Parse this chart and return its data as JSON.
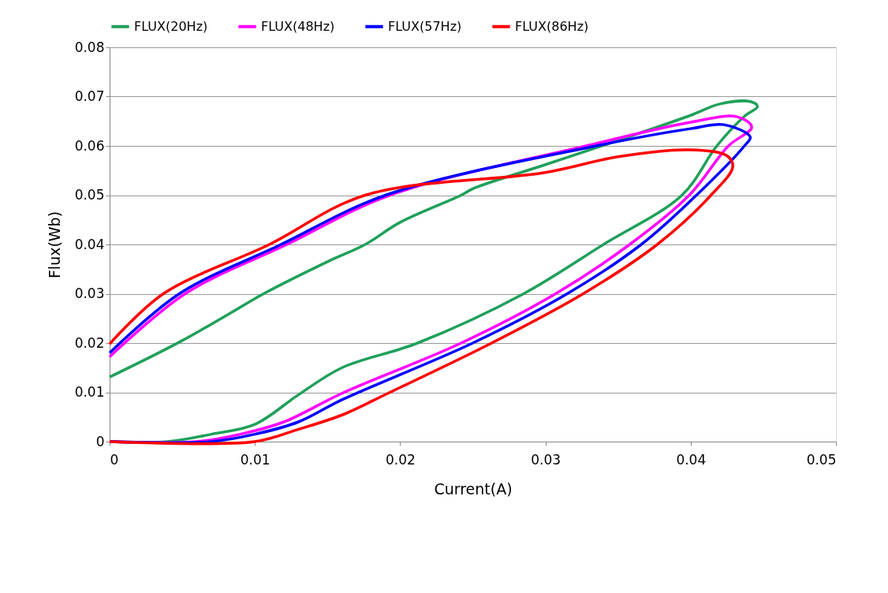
{
  "chart_data": {
    "type": "line",
    "xlabel": "Current(A)",
    "ylabel": "Flux(Wb)",
    "xlim": [
      0,
      0.05
    ],
    "xticks": [
      0,
      0.01,
      0.02,
      0.03,
      0.04,
      0.05
    ],
    "ylim": [
      0,
      0.08
    ],
    "yticks": [
      0,
      0.01,
      0.02,
      0.03,
      0.04,
      0.05,
      0.06,
      0.07,
      0.08
    ],
    "grid": "y",
    "legend": "top",
    "marker": "none",
    "line_style": "solid",
    "series": [
      {
        "name": "FLUX(20Hz)",
        "color": "#1fa05a",
        "x": [
          0,
          0.004,
          0.007,
          0.01,
          0.013,
          0.016,
          0.0212,
          0.0285,
          0.034,
          0.0394,
          0.0418,
          0.0437,
          0.0446,
          0.0441,
          0.042,
          0.04,
          0.035,
          0.03,
          0.025,
          0.0242,
          0.02,
          0.0176,
          0.015,
          0.0106,
          0.01,
          0.005,
          0
        ],
        "values": [
          0,
          0,
          0.0015,
          0.0035,
          0.0095,
          0.015,
          0.02,
          0.03,
          0.04,
          0.05,
          0.06,
          0.066,
          0.068,
          0.069,
          0.0685,
          0.0662,
          0.0611,
          0.0562,
          0.0513,
          0.05,
          0.0445,
          0.04,
          0.0365,
          0.03,
          0.029,
          0.0205,
          0.0131
        ]
      },
      {
        "name": "FLUX(48Hz)",
        "color": "#ff00ff",
        "x": [
          0,
          0.006,
          0.009,
          0.012,
          0.016,
          0.0242,
          0.0307,
          0.0358,
          0.0399,
          0.0426,
          0.0442,
          0.0432,
          0.04,
          0.0328,
          0.0193,
          0.0122,
          0.0052,
          0
        ],
        "values": [
          0,
          0,
          0.0015,
          0.004,
          0.0098,
          0.02,
          0.03,
          0.04,
          0.05,
          0.06,
          0.0638,
          0.0659,
          0.0648,
          0.06,
          0.05,
          0.04,
          0.03,
          0.0172
        ]
      },
      {
        "name": "FLUX(57Hz)",
        "color": "#0000ff",
        "x": [
          0,
          0.007,
          0.01,
          0.013,
          0.016,
          0.025,
          0.0315,
          0.0366,
          0.0404,
          0.0437,
          0.0441,
          0.0423,
          0.04,
          0.0335,
          0.019,
          0.0118,
          0.0048,
          0
        ],
        "values": [
          0,
          0,
          0.0015,
          0.004,
          0.0085,
          0.02,
          0.03,
          0.04,
          0.05,
          0.06,
          0.0618,
          0.0643,
          0.0635,
          0.06,
          0.05,
          0.04,
          0.03,
          0.018
        ]
      },
      {
        "name": "FLUX(86Hz)",
        "color": "#ff0000",
        "x": [
          0,
          0.01,
          0.013,
          0.016,
          0.0193,
          0.0263,
          0.0326,
          0.0377,
          0.0414,
          0.0429,
          0.0425,
          0.0399,
          0.035,
          0.03,
          0.0176,
          0.011,
          0.0037,
          0
        ],
        "values": [
          0,
          0,
          0.0025,
          0.0054,
          0.01,
          0.02,
          0.03,
          0.04,
          0.05,
          0.0558,
          0.058,
          0.0592,
          0.0578,
          0.0546,
          0.05,
          0.04,
          0.03,
          0.0198
        ]
      }
    ]
  }
}
